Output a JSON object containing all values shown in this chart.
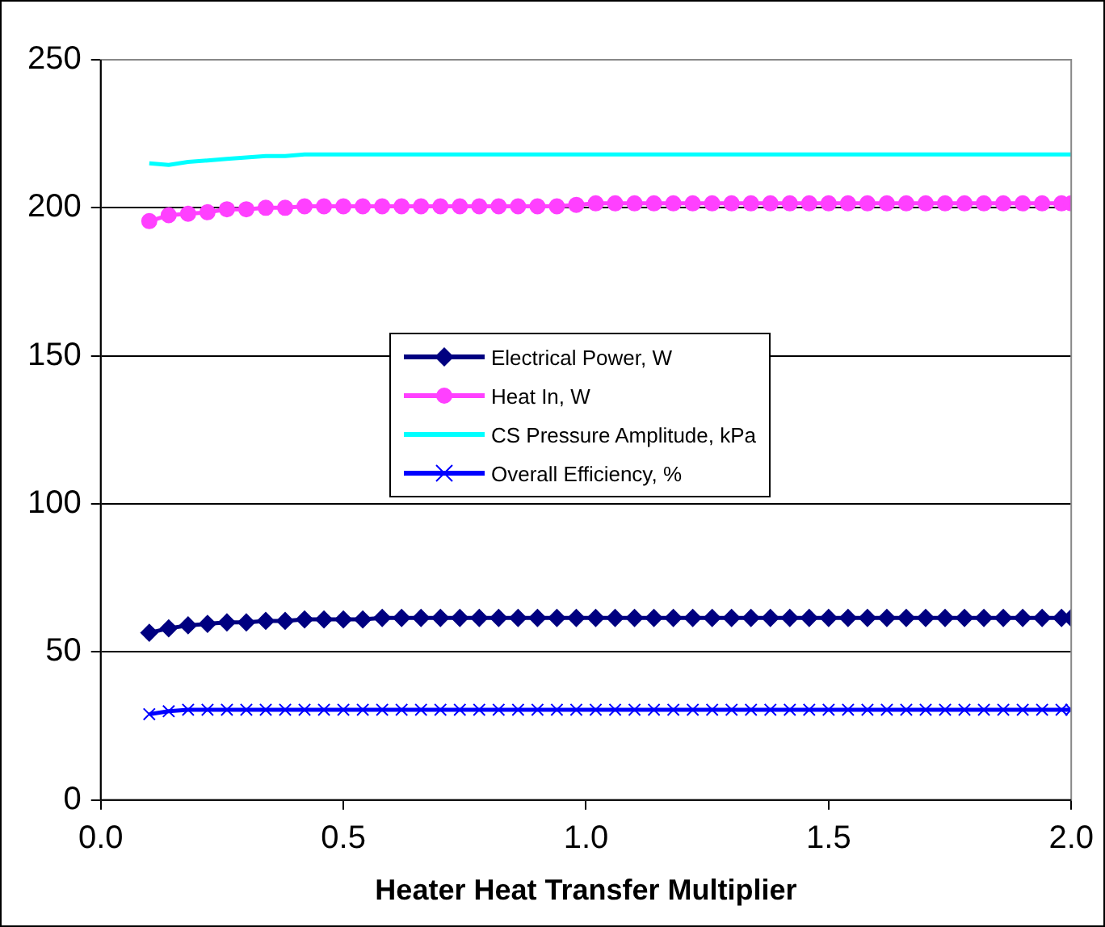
{
  "chart_data": {
    "type": "line",
    "xlabel": "Heater Heat Transfer Multiplier",
    "x": [
      0.1,
      0.14,
      0.18,
      0.22,
      0.26,
      0.3,
      0.34,
      0.38,
      0.42,
      0.46,
      0.5,
      0.54,
      0.58,
      0.62,
      0.66,
      0.7,
      0.74,
      0.78,
      0.82,
      0.86,
      0.9,
      0.94,
      0.98,
      1.02,
      1.06,
      1.1,
      1.14,
      1.18,
      1.22,
      1.26,
      1.3,
      1.34,
      1.38,
      1.42,
      1.46,
      1.5,
      1.54,
      1.58,
      1.62,
      1.66,
      1.7,
      1.74,
      1.78,
      1.82,
      1.86,
      1.9,
      1.94,
      1.98,
      2.0
    ],
    "series": [
      {
        "name": "Electrical Power, W",
        "color": "#000080",
        "marker": "diamond",
        "values": [
          56.5,
          58,
          59,
          59.5,
          60,
          60,
          60.5,
          60.5,
          61,
          61,
          61,
          61,
          61.5,
          61.5,
          61.5,
          61.5,
          61.5,
          61.5,
          61.5,
          61.5,
          61.5,
          61.5,
          61.5,
          61.5,
          61.5,
          61.5,
          61.5,
          61.5,
          61.5,
          61.5,
          61.5,
          61.5,
          61.5,
          61.5,
          61.5,
          61.5,
          61.5,
          61.5,
          61.5,
          61.5,
          61.5,
          61.5,
          61.5,
          61.5,
          61.5,
          61.5,
          61.5,
          61.5,
          61.5
        ]
      },
      {
        "name": "Heat In, W",
        "color": "#ff40ff",
        "marker": "circle",
        "values": [
          195.5,
          197.5,
          198,
          198.5,
          199.5,
          199.5,
          200,
          200,
          200.5,
          200.5,
          200.5,
          200.5,
          200.5,
          200.5,
          200.5,
          200.5,
          200.5,
          200.5,
          200.5,
          200.5,
          200.5,
          200.5,
          201,
          201.5,
          201.5,
          201.5,
          201.5,
          201.5,
          201.5,
          201.5,
          201.5,
          201.5,
          201.5,
          201.5,
          201.5,
          201.5,
          201.5,
          201.5,
          201.5,
          201.5,
          201.5,
          201.5,
          201.5,
          201.5,
          201.5,
          201.5,
          201.5,
          201.5,
          201.5
        ]
      },
      {
        "name": "CS Pressure Amplitude, kPa",
        "color": "#00ffff",
        "marker": "none",
        "values": [
          215,
          214.5,
          215.5,
          216,
          216.5,
          217,
          217.5,
          217.5,
          218,
          218,
          218,
          218,
          218,
          218,
          218,
          218,
          218,
          218,
          218,
          218,
          218,
          218,
          218,
          218,
          218,
          218,
          218,
          218,
          218,
          218,
          218,
          218,
          218,
          218,
          218,
          218,
          218,
          218,
          218,
          218,
          218,
          218,
          218,
          218,
          218,
          218,
          218,
          218,
          218
        ]
      },
      {
        "name": "Overall Efficiency, %",
        "color": "#0000ff",
        "marker": "cross",
        "values": [
          29,
          30,
          30.5,
          30.5,
          30.5,
          30.5,
          30.5,
          30.5,
          30.5,
          30.5,
          30.5,
          30.5,
          30.5,
          30.5,
          30.5,
          30.5,
          30.5,
          30.5,
          30.5,
          30.5,
          30.5,
          30.5,
          30.5,
          30.5,
          30.5,
          30.5,
          30.5,
          30.5,
          30.5,
          30.5,
          30.5,
          30.5,
          30.5,
          30.5,
          30.5,
          30.5,
          30.5,
          30.5,
          30.5,
          30.5,
          30.5,
          30.5,
          30.5,
          30.5,
          30.5,
          30.5,
          30.5,
          30.5,
          30.5
        ]
      }
    ],
    "xlim": [
      0,
      2
    ],
    "xticks": [
      {
        "value": 0,
        "label": "0.0"
      },
      {
        "value": 0.5,
        "label": "0.5"
      },
      {
        "value": 1,
        "label": "1.0"
      },
      {
        "value": 1.5,
        "label": "1.5"
      },
      {
        "value": 2,
        "label": "2.0"
      }
    ],
    "ylim": [
      0,
      250
    ],
    "yticks": [
      0,
      50,
      100,
      150,
      200,
      250
    ],
    "grid": "y",
    "legend": "center",
    "line_style": "solid"
  }
}
